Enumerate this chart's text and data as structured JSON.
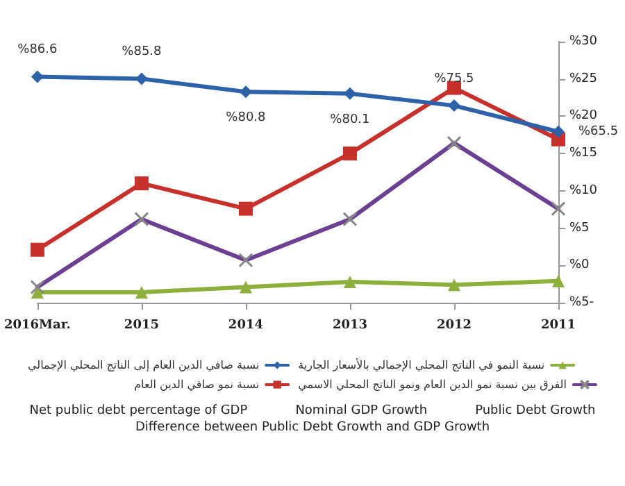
{
  "chart_data": {
    "type": "line",
    "categories": [
      "2016Mar.",
      "2015",
      "2014",
      "2013",
      "2012",
      "2011"
    ],
    "ylim": [
      -5,
      30
    ],
    "yticks": [
      {
        "value": 30,
        "label": "%30"
      },
      {
        "value": 25,
        "label": "%25"
      },
      {
        "value": 20,
        "label": "%20"
      },
      {
        "value": 15,
        "label": "%15"
      },
      {
        "value": 10,
        "label": "%10"
      },
      {
        "value": 5,
        "label": "%5"
      },
      {
        "value": 0,
        "label": "%0"
      },
      {
        "value": -5,
        "label": "%5-"
      }
    ],
    "y2lim": [
      0,
      100
    ],
    "series": [
      {
        "name": "نسبة صافي الدين العام إلى الناتج المحلي الإجمالي",
        "color": "#2e62a8",
        "marker": "diamond",
        "axis": "y2",
        "values": [
          86.6,
          85.8,
          80.8,
          80.1,
          75.5,
          65.5
        ],
        "value_labels": [
          "%86.6",
          "%85.8",
          "%80.8",
          "%80.1",
          "%75.5",
          "%65.5"
        ]
      },
      {
        "name": "نسبة النمو في الناتج المحلي الإجمالي بالأسعار الجارية",
        "color": "#8db03c",
        "marker": "triangle",
        "values": [
          -3.6,
          -3.6,
          -2.9,
          -2.2,
          -2.6,
          -2.1
        ]
      },
      {
        "name": "نسبة نمو صافي الدين العام",
        "color": "#c8302c",
        "marker": "square",
        "values": [
          2.1,
          11.0,
          7.6,
          15.0,
          23.8,
          16.9
        ]
      },
      {
        "name": "الفرق بين نسبة نمو الدين العام ونمو الناتج المحلي الاسمي",
        "color": "#6b3f92",
        "marker": "cross",
        "values": [
          -2.9,
          6.2,
          0.7,
          6.2,
          16.4,
          7.6
        ]
      }
    ],
    "legend": "bottom",
    "grid": false,
    "annotations": [
      "Net public debt percentage of GDP",
      "Nominal GDP Growth",
      "Public Debt Growth",
      "Difference between Public Debt Growth and GDP Growth"
    ]
  }
}
